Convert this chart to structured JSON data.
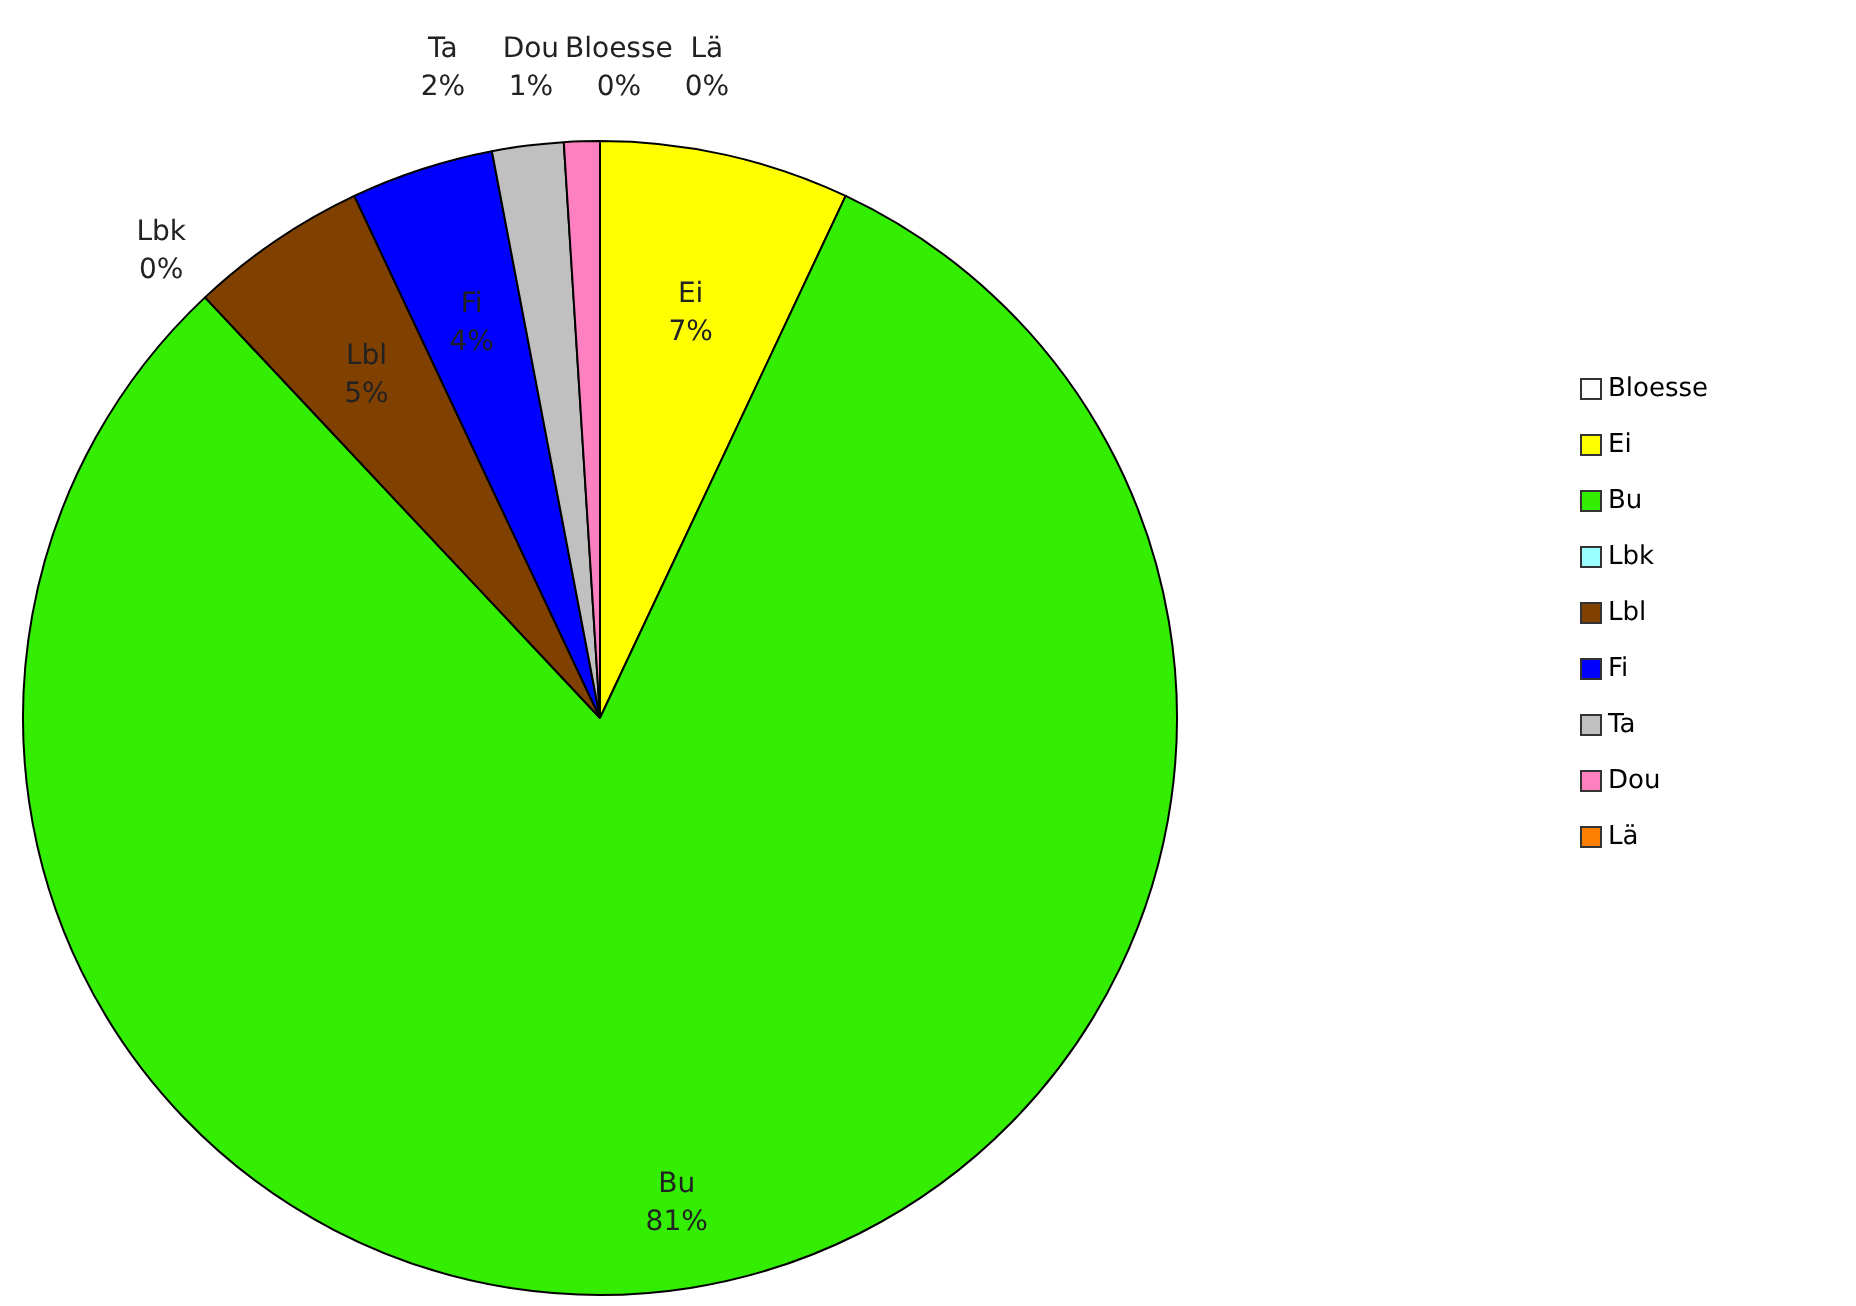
{
  "chart_data": {
    "type": "pie",
    "categories": [
      "Bloesse",
      "Ei",
      "Bu",
      "Lbk",
      "Lbl",
      "Fi",
      "Ta",
      "Dou",
      "Lä"
    ],
    "values": [
      0,
      7,
      81,
      0,
      5,
      4,
      2,
      1,
      0
    ],
    "value_labels": [
      "0%",
      "7%",
      "81%",
      "0%",
      "5%",
      "4%",
      "2%",
      "1%",
      "0%"
    ],
    "colors": [
      "#ffffff",
      "#ffff00",
      "#33ee00",
      "#99ffff",
      "#804000",
      "#0000ff",
      "#c0c0c0",
      "#ff80c0",
      "#ff8000"
    ],
    "legend": "right"
  }
}
